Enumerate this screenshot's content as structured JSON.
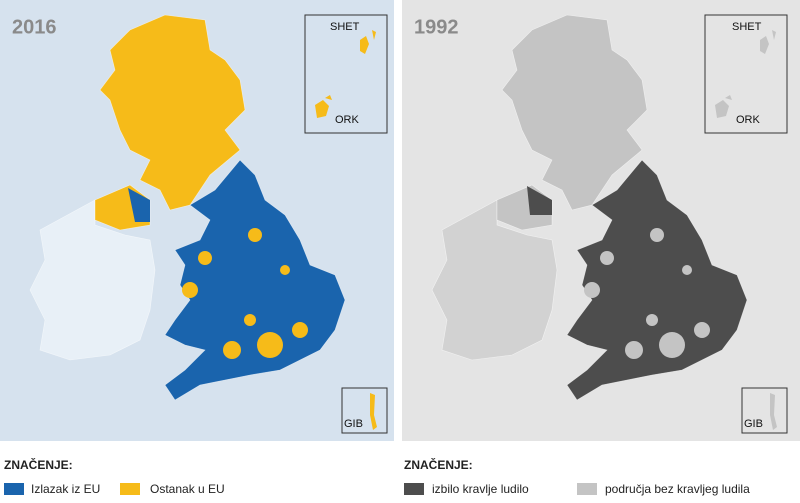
{
  "panels": [
    {
      "title": "2016",
      "background": "#d6e2ee",
      "inset_labels": {
        "shetland": "SHET",
        "orkney": "ORK",
        "gibraltar": "GIB"
      },
      "legend": {
        "title": "ZNAČENJE:",
        "items": [
          {
            "label": "Izlazak iz EU",
            "color": "#1a64ad"
          },
          {
            "label": "Ostanak u EU",
            "color": "#f6bb19"
          }
        ]
      }
    },
    {
      "title": "1992",
      "background": "#e4e4e4",
      "inset_labels": {
        "shetland": "SHET",
        "orkney": "ORK",
        "gibraltar": "GIB"
      },
      "legend": {
        "title": "ZNAČENJE:",
        "items": [
          {
            "label": "izbilo kravlje ludilo",
            "color": "#4d4d4d"
          },
          {
            "label": "područja bez kravljeg ludila",
            "color": "#c4c4c4"
          }
        ]
      }
    }
  ]
}
